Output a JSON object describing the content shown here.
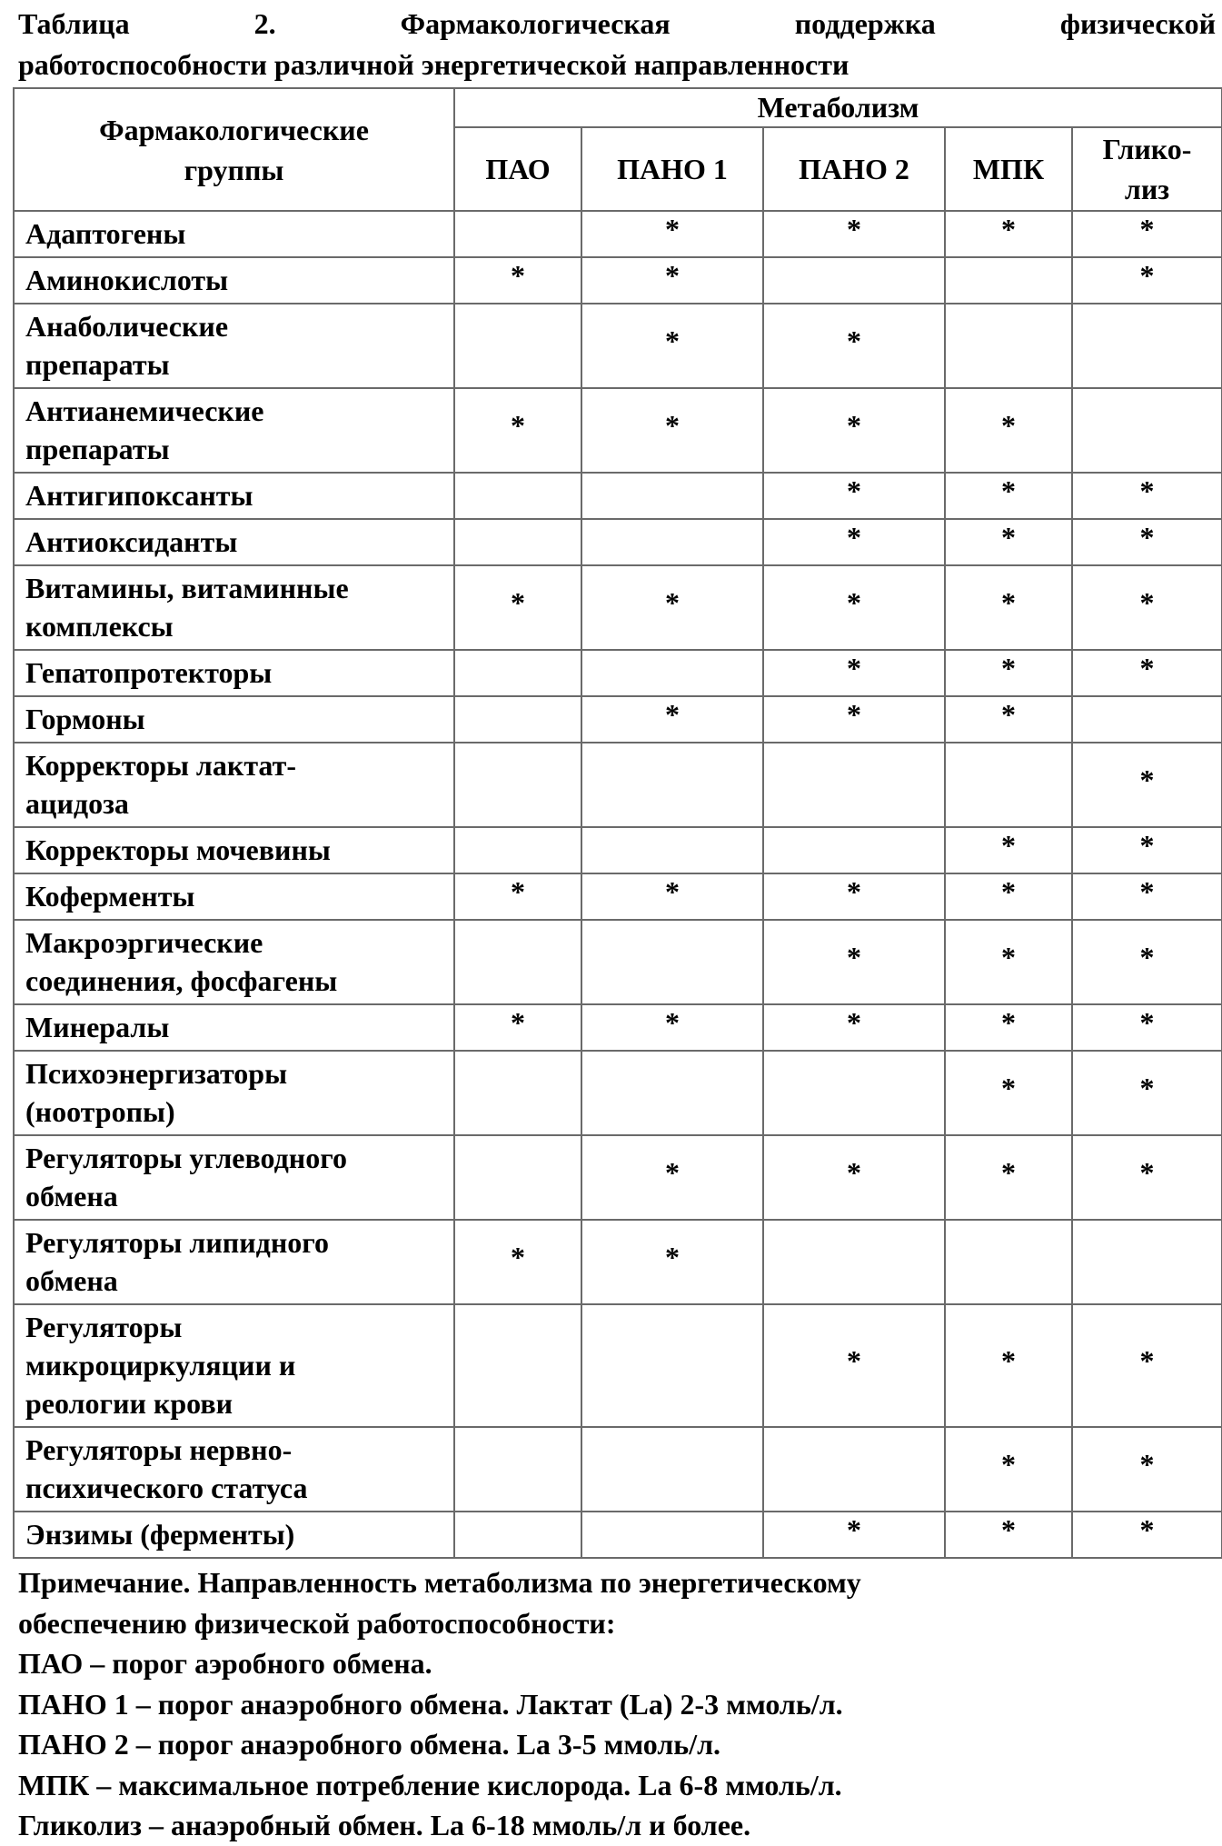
{
  "title_lines": [
    "Таблица 2. Фармакологическая поддержка физической",
    "работоспособности различной энергетической направленности"
  ],
  "table": {
    "group_header": "Фармакологические\nгруппы",
    "metabolism_header": "Метаболизм",
    "columns": [
      "ПАО",
      "ПАНО 1",
      "ПАНО 2",
      "МПК",
      "Глико-\nлиз"
    ],
    "mark_symbol": "*",
    "rows": [
      {
        "label": "Адаптогены",
        "marks": [
          0,
          1,
          1,
          1,
          1
        ]
      },
      {
        "label": "Аминокислоты",
        "marks": [
          1,
          1,
          0,
          0,
          1
        ]
      },
      {
        "label": "Анаболические\nпрепараты",
        "marks": [
          0,
          1,
          1,
          0,
          0
        ]
      },
      {
        "label": "Антианемические\nпрепараты",
        "marks": [
          1,
          1,
          1,
          1,
          0
        ]
      },
      {
        "label": "Антигипоксанты",
        "marks": [
          0,
          0,
          1,
          1,
          1
        ]
      },
      {
        "label": "Антиоксиданты",
        "marks": [
          0,
          0,
          1,
          1,
          1
        ]
      },
      {
        "label": "Витамины, витаминные\nкомплексы",
        "marks": [
          1,
          1,
          1,
          1,
          1
        ]
      },
      {
        "label": "Гепатопротекторы",
        "marks": [
          0,
          0,
          1,
          1,
          1
        ]
      },
      {
        "label": "Гормоны",
        "marks": [
          0,
          1,
          1,
          1,
          0
        ]
      },
      {
        "label": "Корректоры лактат-\nацидоза",
        "marks": [
          0,
          0,
          0,
          0,
          1
        ]
      },
      {
        "label": "Корректоры мочевины",
        "marks": [
          0,
          0,
          0,
          1,
          1
        ]
      },
      {
        "label": "Коферменты",
        "marks": [
          1,
          1,
          1,
          1,
          1
        ]
      },
      {
        "label": "Макроэргические\nсоединения, фосфагены",
        "marks": [
          0,
          0,
          1,
          1,
          1
        ]
      },
      {
        "label": "Минералы",
        "marks": [
          1,
          1,
          1,
          1,
          1
        ]
      },
      {
        "label": "Психоэнергизаторы\n(ноотропы)",
        "marks": [
          0,
          0,
          0,
          1,
          1
        ]
      },
      {
        "label": "Регуляторы углеводного\nобмена",
        "marks": [
          0,
          1,
          1,
          1,
          1
        ]
      },
      {
        "label": "Регуляторы липидного\nобмена",
        "marks": [
          1,
          1,
          0,
          0,
          0
        ]
      },
      {
        "label": "Регуляторы\nмикроциркуляции и\nреологии крови",
        "marks": [
          0,
          0,
          1,
          1,
          1
        ]
      },
      {
        "label": "Регуляторы нервно-\nпсихического статуса",
        "marks": [
          0,
          0,
          0,
          1,
          1
        ]
      },
      {
        "label": "Энзимы (ферменты)",
        "marks": [
          0,
          0,
          1,
          1,
          1
        ]
      }
    ]
  },
  "note_lines": [
    "Примечание. Направленность метаболизма по энергетическому",
    "обеспечению физической работоспособности:",
    "ПАО – порог аэробного обмена.",
    "ПАНО 1 – порог анаэробного обмена. Лактат (La) 2-3 ммоль/л.",
    "ПАНО 2 – порог анаэробного обмена. La 3-5 ммоль/л.",
    "МПК – максимальное потребление кислорода. La 6-8 ммоль/л.",
    "Гликолиз – анаэробный обмен. La 6-18 ммоль/л и более."
  ]
}
